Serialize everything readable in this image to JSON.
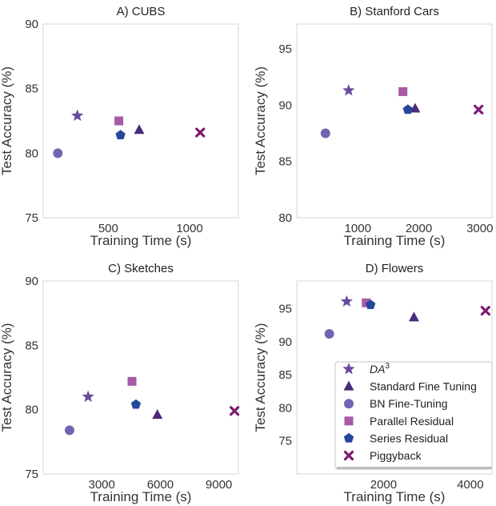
{
  "chart_data": [
    {
      "type": "scatter",
      "title": "A) CUBS",
      "xlabel": "Training Time (s)",
      "ylabel": "Test Accuracy (%)",
      "xlim": [
        100,
        1300
      ],
      "ylim": [
        75,
        90
      ],
      "xticks": [
        500,
        1000
      ],
      "yticks": [
        75,
        80,
        85,
        90
      ],
      "grid": false,
      "points": [
        {
          "method": "da3",
          "x": 310,
          "y": 82.9
        },
        {
          "method": "sft",
          "x": 690,
          "y": 81.8
        },
        {
          "method": "bn",
          "x": 190,
          "y": 80.0
        },
        {
          "method": "par",
          "x": 565,
          "y": 82.5
        },
        {
          "method": "ser",
          "x": 575,
          "y": 81.4
        },
        {
          "method": "pig",
          "x": 1065,
          "y": 81.6
        }
      ]
    },
    {
      "type": "scatter",
      "title": "B) Stanford Cars",
      "xlabel": "Training Time (s)",
      "ylabel": "Test Accuracy (%)",
      "xlim": [
        0,
        3200
      ],
      "ylim": [
        80,
        97.2
      ],
      "xticks": [
        1000,
        2000,
        3000
      ],
      "yticks": [
        80,
        85,
        90,
        95
      ],
      "grid": false,
      "points": [
        {
          "method": "da3",
          "x": 850,
          "y": 91.3
        },
        {
          "method": "sft",
          "x": 1940,
          "y": 89.7
        },
        {
          "method": "bn",
          "x": 470,
          "y": 87.5
        },
        {
          "method": "par",
          "x": 1740,
          "y": 91.2
        },
        {
          "method": "ser",
          "x": 1820,
          "y": 89.6
        },
        {
          "method": "pig",
          "x": 2980,
          "y": 89.6
        }
      ]
    },
    {
      "type": "scatter",
      "title": "C) Sketches",
      "xlabel": "Training Time (s)",
      "ylabel": "Test Accuracy (%)",
      "xlim": [
        0,
        10000
      ],
      "ylim": [
        75,
        90
      ],
      "xticks": [
        3000,
        6000,
        9000
      ],
      "yticks": [
        75,
        80,
        85,
        90
      ],
      "grid": false,
      "points": [
        {
          "method": "da3",
          "x": 2300,
          "y": 81.0
        },
        {
          "method": "sft",
          "x": 5850,
          "y": 79.6
        },
        {
          "method": "bn",
          "x": 1350,
          "y": 78.4
        },
        {
          "method": "par",
          "x": 4550,
          "y": 82.2
        },
        {
          "method": "ser",
          "x": 4750,
          "y": 80.4
        },
        {
          "method": "pig",
          "x": 9800,
          "y": 79.9
        }
      ]
    },
    {
      "type": "scatter",
      "title": "D) Flowers",
      "xlabel": "Training Time (s)",
      "ylabel": "Test Accuracy (%)",
      "xlim": [
        0,
        4500
      ],
      "ylim": [
        70,
        99.2
      ],
      "xticks": [
        2000,
        4000
      ],
      "yticks": [
        75,
        80,
        85,
        90,
        95
      ],
      "grid": false,
      "legend_position": "lower-right",
      "points": [
        {
          "method": "da3",
          "x": 1150,
          "y": 96.1
        },
        {
          "method": "sft",
          "x": 2700,
          "y": 93.7
        },
        {
          "method": "bn",
          "x": 750,
          "y": 91.2
        },
        {
          "method": "par",
          "x": 1600,
          "y": 95.9
        },
        {
          "method": "ser",
          "x": 1700,
          "y": 95.6
        },
        {
          "method": "pig",
          "x": 4350,
          "y": 94.7
        }
      ]
    }
  ],
  "legend": [
    {
      "key": "da3",
      "label": "DA",
      "label_sup": "3",
      "marker": "star-icon",
      "color": "#6b4a9e"
    },
    {
      "key": "sft",
      "label": "Standard Fine Tuning",
      "marker": "triangle-icon",
      "color": "#4b2a7a"
    },
    {
      "key": "bn",
      "label": "BN Fine-Tuning",
      "marker": "circle-icon",
      "color": "#6e66b3"
    },
    {
      "key": "par",
      "label": "Parallel Residual",
      "marker": "square-icon",
      "color": "#a85aa6"
    },
    {
      "key": "ser",
      "label": "Series Residual",
      "marker": "pentagon-icon",
      "color": "#25479b"
    },
    {
      "key": "pig",
      "label": "Piggyback",
      "marker": "x-icon",
      "color": "#7c1c74"
    }
  ]
}
